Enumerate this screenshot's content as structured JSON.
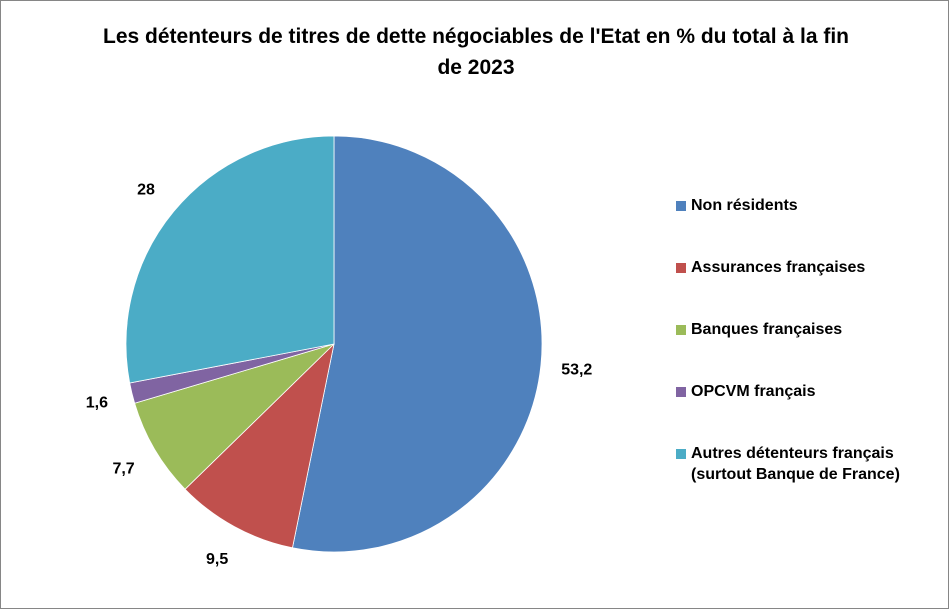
{
  "chart_data": {
    "type": "pie",
    "title": "Les détenteurs de titres de dette négociables de l'Etat en % du total à la fin de 2023",
    "slices": [
      {
        "name": "Non résidents",
        "value": 53.2,
        "label": "53,2",
        "color": "#4F81BD"
      },
      {
        "name": "Assurances françaises",
        "value": 9.5,
        "label": "9,5",
        "color": "#C0504D"
      },
      {
        "name": "Banques françaises",
        "value": 7.7,
        "label": "7,7",
        "color": "#9BBB59"
      },
      {
        "name": "OPCVM français",
        "value": 1.6,
        "label": "1,6",
        "color": "#8064A2"
      },
      {
        "name": "Autres détenteurs français\n(surtout Banque de France)",
        "value": 28,
        "label": "28",
        "color": "#4BACC6"
      }
    ],
    "legend_position": "right"
  }
}
